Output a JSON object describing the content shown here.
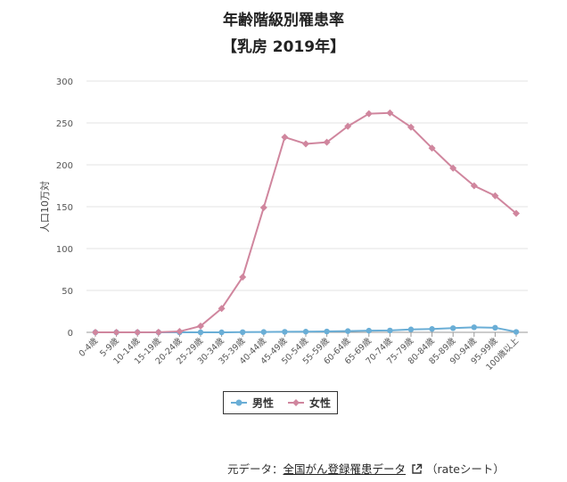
{
  "title": {
    "line1": "年齢階級別罹患率",
    "line2": "【乳房 2019年】"
  },
  "source": {
    "prefix": "元データ：",
    "link_text": "全国がん登録罹患データ",
    "suffix": "（rateシート）",
    "icon": "external-link-icon"
  },
  "chart_data": {
    "type": "line",
    "title": "年齢階級別罹患率",
    "subtitle": "【乳房 2019年】",
    "xlabel": "",
    "ylabel": "人口10万対",
    "ylim": [
      0,
      300
    ],
    "yticks": [
      0,
      50,
      100,
      150,
      200,
      250,
      300
    ],
    "grid": true,
    "legend_position": "bottom",
    "categories": [
      "0-4歳",
      "5-9歳",
      "10-14歳",
      "15-19歳",
      "20-24歳",
      "25-29歳",
      "30-34歳",
      "35-39歳",
      "40-44歳",
      "45-49歳",
      "50-54歳",
      "55-59歳",
      "60-64歳",
      "65-69歳",
      "70-74歳",
      "75-79歳",
      "80-84歳",
      "85-89歳",
      "90-94歳",
      "95-99歳",
      "100歳以上"
    ],
    "series": [
      {
        "name": "男性",
        "color": "#6aaed6",
        "marker": "circle",
        "values": [
          0,
          0,
          0,
          0,
          0,
          0,
          0,
          0.2,
          0.4,
          0.6,
          0.8,
          1.0,
          1.5,
          2.0,
          2.2,
          3.5,
          4.0,
          5.0,
          6.0,
          5.5,
          0.5
        ]
      },
      {
        "name": "女性",
        "color": "#d0869e",
        "marker": "diamond",
        "values": [
          0,
          0,
          0,
          0.1,
          1.0,
          7.5,
          28.5,
          66,
          149,
          233,
          225,
          227,
          246,
          261,
          262,
          245,
          220,
          196,
          175,
          163,
          142
        ]
      }
    ]
  }
}
